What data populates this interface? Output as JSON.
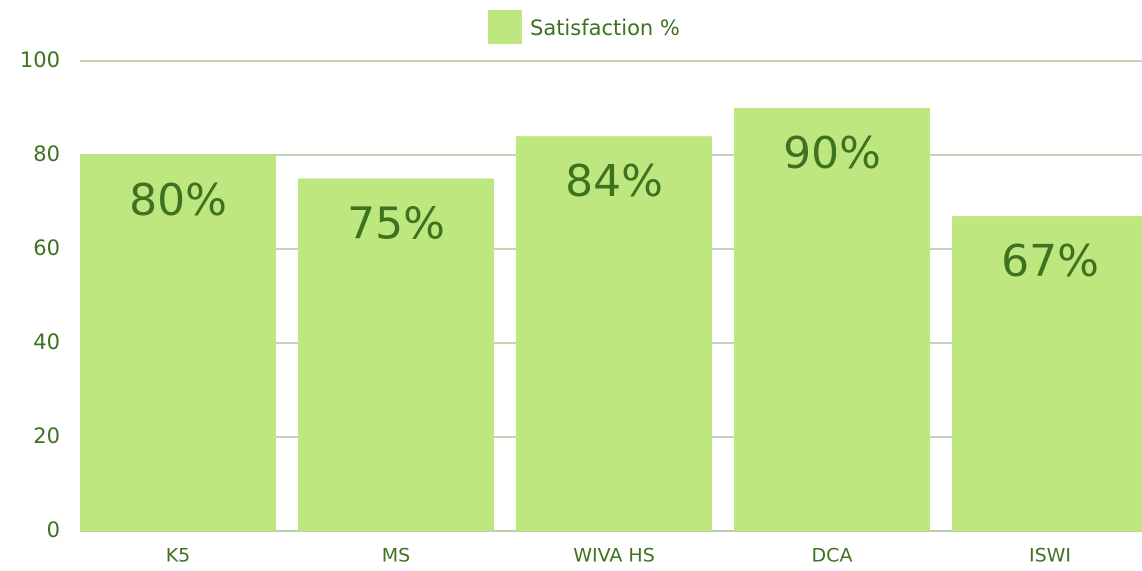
{
  "chart_data": {
    "type": "bar",
    "legend_label": "Satisfaction %",
    "categories": [
      "K5",
      "MS",
      "WIVA HS",
      "DCA",
      "ISWI"
    ],
    "values": [
      80,
      75,
      84,
      90,
      67
    ],
    "value_labels": [
      "80%",
      "75%",
      "84%",
      "90%",
      "67%"
    ],
    "color": "#bee77f",
    "ylim": [
      0,
      100
    ],
    "yticks": [
      0,
      20,
      40,
      60,
      80,
      100
    ],
    "grid": true,
    "legend": "top"
  }
}
